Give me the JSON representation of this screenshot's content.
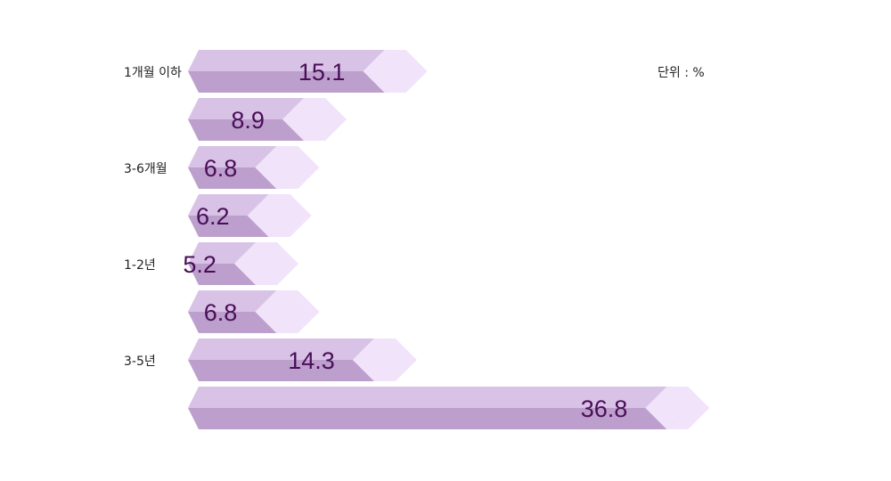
{
  "chart_data": {
    "type": "bar",
    "orientation": "horizontal",
    "unit_label": "단위 : %",
    "category_labels": [
      "1개월 이하",
      "3-6개월",
      "1-2년",
      "3-5년"
    ],
    "bars": [
      {
        "label": "1개월 이하",
        "value": 15.1
      },
      {
        "label": "",
        "value": 8.9
      },
      {
        "label": "3-6개월",
        "value": 6.8
      },
      {
        "label": "",
        "value": 6.2
      },
      {
        "label": "1-2년",
        "value": 5.2
      },
      {
        "label": "",
        "value": 6.8
      },
      {
        "label": "3-5년",
        "value": 14.3
      },
      {
        "label": "",
        "value": 36.8
      }
    ],
    "colors": {
      "bar_top": "#d8c3e6",
      "bar_bottom": "#bc9fcd",
      "tip": "#f1e3fa",
      "value_text": "#4a0e58",
      "label_text": "#222222"
    }
  }
}
